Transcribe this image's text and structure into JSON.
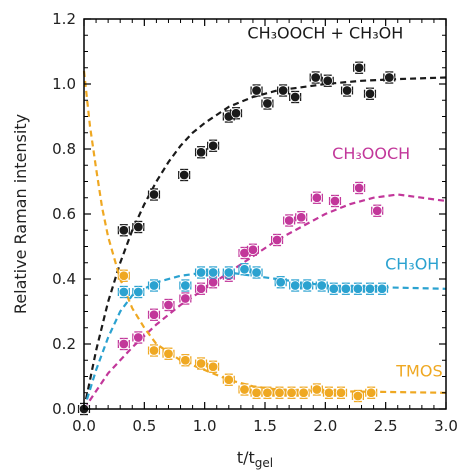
{
  "chart_data": {
    "type": "scatter",
    "xlabel_main": "t/t",
    "xlabel_sub": "gel",
    "ylabel": "Relative Raman intensity",
    "xlim": [
      0.0,
      3.0
    ],
    "ylim": [
      0.0,
      1.2
    ],
    "xticks": [
      "0.0",
      "0.5",
      "1.0",
      "1.5",
      "2.0",
      "2.5",
      "3.0"
    ],
    "yticks": [
      "0.0",
      "0.2",
      "0.4",
      "0.6",
      "0.8",
      "1.0",
      "1.2"
    ],
    "grid": false,
    "series": [
      {
        "name": "CH3OOCH + CH3OH",
        "color": "#1a1a1a",
        "points": [
          [
            0.0,
            0.0
          ],
          [
            0.33,
            0.55
          ],
          [
            0.45,
            0.56
          ],
          [
            0.58,
            0.66
          ],
          [
            0.83,
            0.72
          ],
          [
            0.97,
            0.79
          ],
          [
            1.07,
            0.81
          ],
          [
            1.2,
            0.9
          ],
          [
            1.26,
            0.91
          ],
          [
            1.43,
            0.98
          ],
          [
            1.52,
            0.94
          ],
          [
            1.65,
            0.98
          ],
          [
            1.75,
            0.96
          ],
          [
            1.92,
            1.02
          ],
          [
            2.02,
            1.01
          ],
          [
            2.18,
            0.98
          ],
          [
            2.28,
            1.05
          ],
          [
            2.37,
            0.97
          ],
          [
            2.53,
            1.02
          ]
        ],
        "fit": [
          [
            0.0,
            0.0
          ],
          [
            0.1,
            0.18
          ],
          [
            0.2,
            0.33
          ],
          [
            0.3,
            0.45
          ],
          [
            0.4,
            0.55
          ],
          [
            0.5,
            0.63
          ],
          [
            0.6,
            0.7
          ],
          [
            0.7,
            0.76
          ],
          [
            0.8,
            0.81
          ],
          [
            0.9,
            0.85
          ],
          [
            1.0,
            0.88
          ],
          [
            1.2,
            0.93
          ],
          [
            1.4,
            0.96
          ],
          [
            1.6,
            0.98
          ],
          [
            1.8,
            0.99
          ],
          [
            2.0,
            1.0
          ],
          [
            2.3,
            1.01
          ],
          [
            2.6,
            1.015
          ],
          [
            3.0,
            1.02
          ]
        ]
      },
      {
        "name": "CH3OOCH",
        "color": "#c2379a",
        "points": [
          [
            0.33,
            0.2
          ],
          [
            0.45,
            0.22
          ],
          [
            0.58,
            0.29
          ],
          [
            0.7,
            0.32
          ],
          [
            0.84,
            0.34
          ],
          [
            0.97,
            0.37
          ],
          [
            1.07,
            0.39
          ],
          [
            1.2,
            0.41
          ],
          [
            1.33,
            0.48
          ],
          [
            1.4,
            0.49
          ],
          [
            1.6,
            0.52
          ],
          [
            1.7,
            0.58
          ],
          [
            1.8,
            0.59
          ],
          [
            1.93,
            0.65
          ],
          [
            2.08,
            0.64
          ],
          [
            2.28,
            0.68
          ],
          [
            2.43,
            0.61
          ]
        ],
        "fit": [
          [
            0.0,
            0.0
          ],
          [
            0.2,
            0.11
          ],
          [
            0.4,
            0.19
          ],
          [
            0.6,
            0.26
          ],
          [
            0.8,
            0.32
          ],
          [
            1.0,
            0.37
          ],
          [
            1.2,
            0.42
          ],
          [
            1.4,
            0.47
          ],
          [
            1.6,
            0.52
          ],
          [
            1.8,
            0.56
          ],
          [
            2.0,
            0.6
          ],
          [
            2.2,
            0.63
          ],
          [
            2.4,
            0.65
          ],
          [
            2.6,
            0.66
          ],
          [
            2.8,
            0.65
          ],
          [
            3.0,
            0.64
          ]
        ]
      },
      {
        "name": "CH3OH",
        "color": "#2ba2d0",
        "points": [
          [
            0.33,
            0.36
          ],
          [
            0.45,
            0.36
          ],
          [
            0.58,
            0.38
          ],
          [
            0.84,
            0.38
          ],
          [
            0.97,
            0.42
          ],
          [
            1.07,
            0.42
          ],
          [
            1.2,
            0.42
          ],
          [
            1.33,
            0.43
          ],
          [
            1.43,
            0.42
          ],
          [
            1.63,
            0.39
          ],
          [
            1.75,
            0.38
          ],
          [
            1.85,
            0.38
          ],
          [
            1.97,
            0.38
          ],
          [
            2.07,
            0.37
          ],
          [
            2.17,
            0.37
          ],
          [
            2.27,
            0.37
          ],
          [
            2.37,
            0.37
          ],
          [
            2.47,
            0.37
          ]
        ],
        "fit": [
          [
            0.0,
            0.0
          ],
          [
            0.1,
            0.12
          ],
          [
            0.2,
            0.22
          ],
          [
            0.3,
            0.3
          ],
          [
            0.4,
            0.35
          ],
          [
            0.6,
            0.39
          ],
          [
            0.8,
            0.41
          ],
          [
            1.0,
            0.42
          ],
          [
            1.2,
            0.42
          ],
          [
            1.4,
            0.41
          ],
          [
            1.6,
            0.4
          ],
          [
            1.8,
            0.39
          ],
          [
            2.0,
            0.38
          ],
          [
            2.4,
            0.375
          ],
          [
            3.0,
            0.37
          ]
        ]
      },
      {
        "name": "TMOS",
        "color": "#efa822",
        "points": [
          [
            0.33,
            0.41
          ],
          [
            0.58,
            0.18
          ],
          [
            0.7,
            0.17
          ],
          [
            0.84,
            0.15
          ],
          [
            0.97,
            0.14
          ],
          [
            1.07,
            0.13
          ],
          [
            1.2,
            0.09
          ],
          [
            1.33,
            0.06
          ],
          [
            1.43,
            0.05
          ],
          [
            1.52,
            0.05
          ],
          [
            1.62,
            0.05
          ],
          [
            1.72,
            0.05
          ],
          [
            1.82,
            0.05
          ],
          [
            1.93,
            0.06
          ],
          [
            2.03,
            0.05
          ],
          [
            2.13,
            0.05
          ],
          [
            2.27,
            0.04
          ],
          [
            2.38,
            0.05
          ]
        ],
        "fit": [
          [
            0.0,
            1.04
          ],
          [
            0.05,
            0.87
          ],
          [
            0.1,
            0.74
          ],
          [
            0.15,
            0.62
          ],
          [
            0.2,
            0.53
          ],
          [
            0.3,
            0.4
          ],
          [
            0.4,
            0.31
          ],
          [
            0.5,
            0.25
          ],
          [
            0.6,
            0.2
          ],
          [
            0.8,
            0.15
          ],
          [
            1.0,
            0.12
          ],
          [
            1.2,
            0.09
          ],
          [
            1.4,
            0.07
          ],
          [
            1.6,
            0.06
          ],
          [
            2.0,
            0.055
          ],
          [
            3.0,
            0.05
          ]
        ]
      }
    ],
    "annotations": [
      {
        "text": "CH₃OOCH + CH₃OH",
        "series": 0,
        "x": 2.0,
        "y": 1.14
      },
      {
        "text": "CH₃OOCH",
        "series": 1,
        "x": 2.38,
        "y": 0.77
      },
      {
        "text": "CH₃OH",
        "series": 2,
        "x": 2.72,
        "y": 0.43
      },
      {
        "text": "TMOS",
        "series": 3,
        "x": 2.78,
        "y": 0.1
      }
    ]
  }
}
